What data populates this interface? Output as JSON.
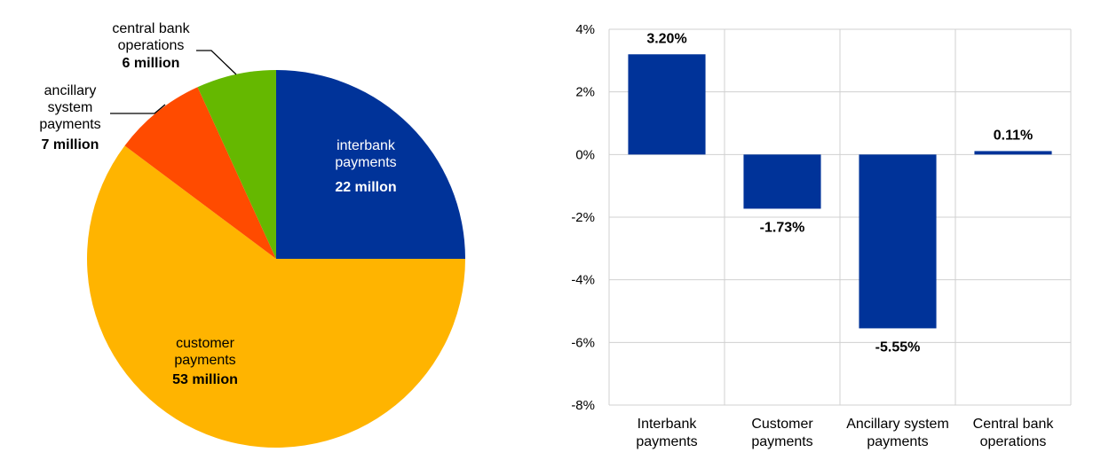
{
  "chart_data": [
    {
      "type": "pie",
      "title": "",
      "slices": [
        {
          "label_lines": [
            "interbank",
            "payments"
          ],
          "value_label": "22 millon",
          "value": 22,
          "color": "#003399"
        },
        {
          "label_lines": [
            "customer",
            "payments"
          ],
          "value_label": "53 million",
          "value": 53,
          "color": "#FFB400"
        },
        {
          "label_lines": [
            "ancillary",
            "system",
            "payments"
          ],
          "value_label": "7 million",
          "value": 7,
          "color": "#FF4B00"
        },
        {
          "label_lines": [
            "central bank",
            "operations"
          ],
          "value_label": "6 million",
          "value": 6,
          "color": "#65B800"
        }
      ]
    },
    {
      "type": "bar",
      "title": "",
      "xlabel": "",
      "ylabel": "",
      "categories": [
        [
          "Interbank",
          "payments"
        ],
        [
          "Customer",
          "payments"
        ],
        [
          "Ancillary system",
          "payments"
        ],
        [
          "Central bank",
          "operations"
        ]
      ],
      "values": [
        3.2,
        -1.73,
        -5.55,
        0.11
      ],
      "value_labels": [
        "3.20%",
        "-1.73%",
        "-5.55%",
        "0.11%"
      ],
      "ylim": [
        -8,
        4
      ],
      "yticks": [
        4,
        2,
        0,
        -2,
        -4,
        -6,
        -8
      ],
      "ytick_labels": [
        "4%",
        "2%",
        "0%",
        "-2%",
        "-4%",
        "-6%",
        "-8%"
      ],
      "grid": true,
      "color": "#003399"
    }
  ]
}
